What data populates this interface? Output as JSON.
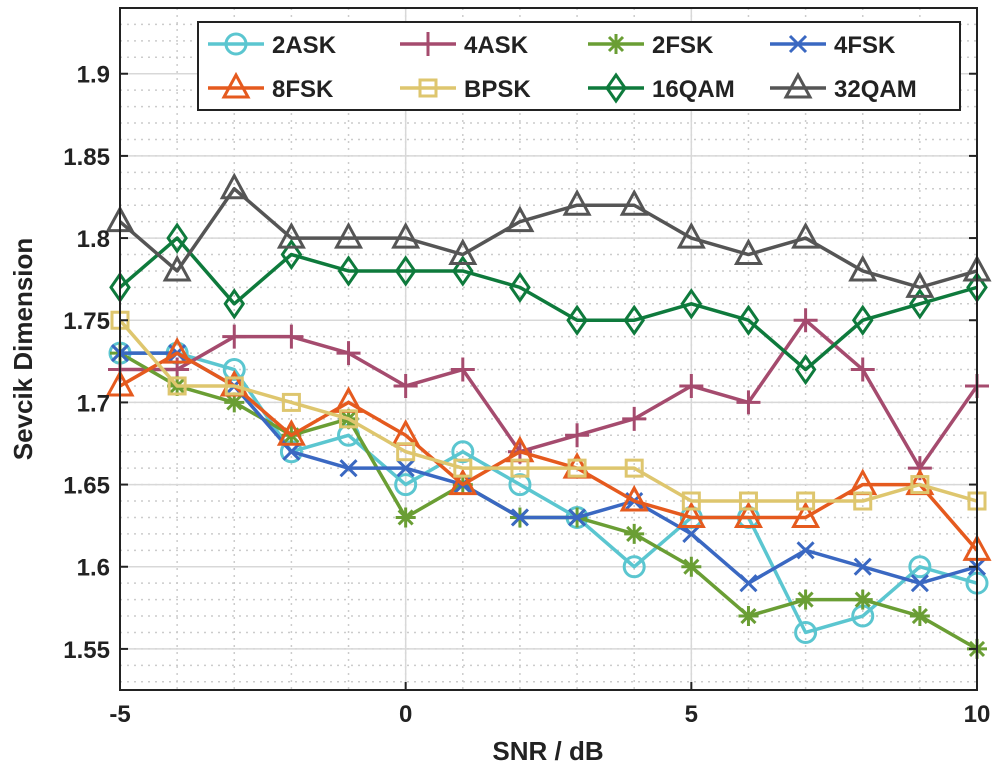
{
  "chart_data": {
    "type": "line",
    "xlabel": "SNR / dB",
    "ylabel": "Sevcik Dimension",
    "xlim": [
      -5,
      10
    ],
    "ylim": [
      1.525,
      1.94
    ],
    "xticks": [
      -5,
      0,
      5,
      10
    ],
    "yticks": [
      1.55,
      1.6,
      1.65,
      1.7,
      1.75,
      1.8,
      1.85,
      1.9
    ],
    "xtick_labels": [
      "-5",
      "0",
      "5",
      "10"
    ],
    "ytick_labels": [
      "1.55",
      "1.6",
      "1.65",
      "1.7",
      "1.75",
      "1.8",
      "1.85",
      "1.9"
    ],
    "grid": true,
    "minor_grid": true,
    "legend_placement": "top",
    "x": [
      -5,
      -4,
      -3,
      -2,
      -1,
      0,
      1,
      2,
      3,
      4,
      5,
      6,
      7,
      8,
      9,
      10
    ],
    "series": [
      {
        "name": "2ASK",
        "color": "#5BC6D0",
        "marker": "circle",
        "values": [
          1.73,
          1.73,
          1.72,
          1.67,
          1.68,
          1.65,
          1.67,
          1.65,
          1.63,
          1.6,
          1.63,
          1.63,
          1.56,
          1.57,
          1.6,
          1.59
        ]
      },
      {
        "name": "4ASK",
        "color": "#A54B6E",
        "marker": "plus",
        "values": [
          1.72,
          1.72,
          1.74,
          1.74,
          1.73,
          1.71,
          1.72,
          1.67,
          1.68,
          1.69,
          1.71,
          1.7,
          1.75,
          1.72,
          1.66,
          1.71
        ]
      },
      {
        "name": "2FSK",
        "color": "#6A9E34",
        "marker": "asterisk",
        "values": [
          1.73,
          1.71,
          1.7,
          1.68,
          1.69,
          1.63,
          1.65,
          1.63,
          1.63,
          1.62,
          1.6,
          1.57,
          1.58,
          1.58,
          1.57,
          1.55
        ]
      },
      {
        "name": "4FSK",
        "color": "#3A68C2",
        "marker": "x",
        "values": [
          1.73,
          1.73,
          1.71,
          1.67,
          1.66,
          1.66,
          1.65,
          1.63,
          1.63,
          1.64,
          1.62,
          1.59,
          1.61,
          1.6,
          1.59,
          1.6
        ]
      },
      {
        "name": "8FSK",
        "color": "#E55A1E",
        "marker": "triangle",
        "values": [
          1.71,
          1.73,
          1.71,
          1.68,
          1.7,
          1.68,
          1.65,
          1.67,
          1.66,
          1.64,
          1.63,
          1.63,
          1.63,
          1.65,
          1.65,
          1.61
        ]
      },
      {
        "name": "BPSK",
        "color": "#DEC66E",
        "marker": "square",
        "values": [
          1.75,
          1.71,
          1.71,
          1.7,
          1.69,
          1.67,
          1.66,
          1.66,
          1.66,
          1.66,
          1.64,
          1.64,
          1.64,
          1.64,
          1.65,
          1.64
        ]
      },
      {
        "name": "16QAM",
        "color": "#0E7A3C",
        "marker": "diamond",
        "values": [
          1.77,
          1.8,
          1.76,
          1.79,
          1.78,
          1.78,
          1.78,
          1.77,
          1.75,
          1.75,
          1.76,
          1.75,
          1.72,
          1.75,
          1.76,
          1.77
        ]
      },
      {
        "name": "32QAM",
        "color": "#555555",
        "marker": "triangle",
        "values": [
          1.81,
          1.78,
          1.83,
          1.8,
          1.8,
          1.8,
          1.79,
          1.81,
          1.82,
          1.82,
          1.8,
          1.79,
          1.8,
          1.78,
          1.77,
          1.78
        ]
      }
    ]
  }
}
